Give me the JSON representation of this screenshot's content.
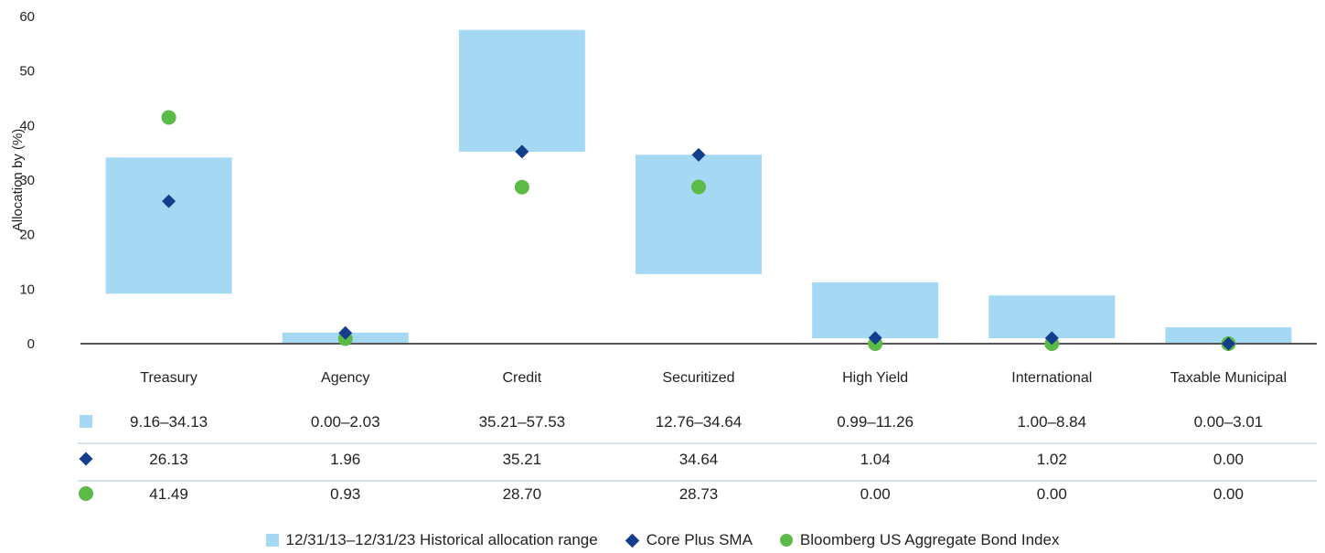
{
  "chart_data": {
    "type": "range-bar",
    "ylabel": "Allocation by (%)",
    "ylim": [
      0,
      60
    ],
    "yticks": [
      0,
      10,
      20,
      30,
      40,
      50,
      60
    ],
    "grid": false,
    "categories": [
      "Treasury",
      "Agency",
      "Credit",
      "Securitized",
      "High Yield",
      "International",
      "Taxable Municipal"
    ],
    "range_series": {
      "name": "12/31/13–12/31/23 Historical allocation range",
      "color": "#a5d8f3",
      "low": [
        9.16,
        0.0,
        35.21,
        12.76,
        0.99,
        1.0,
        0.0
      ],
      "high": [
        34.13,
        2.03,
        57.53,
        34.64,
        11.26,
        8.84,
        3.01
      ],
      "labels": [
        "9.16–34.13",
        "0.00–2.03",
        "35.21–57.53",
        "12.76–34.64",
        "0.99–11.26",
        "1.00–8.84",
        "0.00–3.01"
      ]
    },
    "series": [
      {
        "name": "Core Plus SMA",
        "marker": "diamond",
        "color": "#143d8c",
        "values": [
          26.13,
          1.96,
          35.21,
          34.64,
          1.04,
          1.02,
          0.0
        ],
        "labels": [
          "26.13",
          "1.96",
          "35.21",
          "34.64",
          "1.04",
          "1.02",
          "0.00"
        ]
      },
      {
        "name": "Bloomberg US Aggregate Bond Index",
        "marker": "circle",
        "color": "#5cbb46",
        "values": [
          41.49,
          0.93,
          28.7,
          28.73,
          0.0,
          0.0,
          0.0
        ],
        "labels": [
          "41.49",
          "0.93",
          "28.70",
          "28.73",
          "0.00",
          "0.00",
          "0.00"
        ]
      }
    ],
    "legend": {
      "position": "bottom",
      "items": [
        "12/31/13–12/31/23 Historical allocation range",
        "Core Plus SMA",
        "Bloomberg US Aggregate Bond Index"
      ]
    }
  }
}
